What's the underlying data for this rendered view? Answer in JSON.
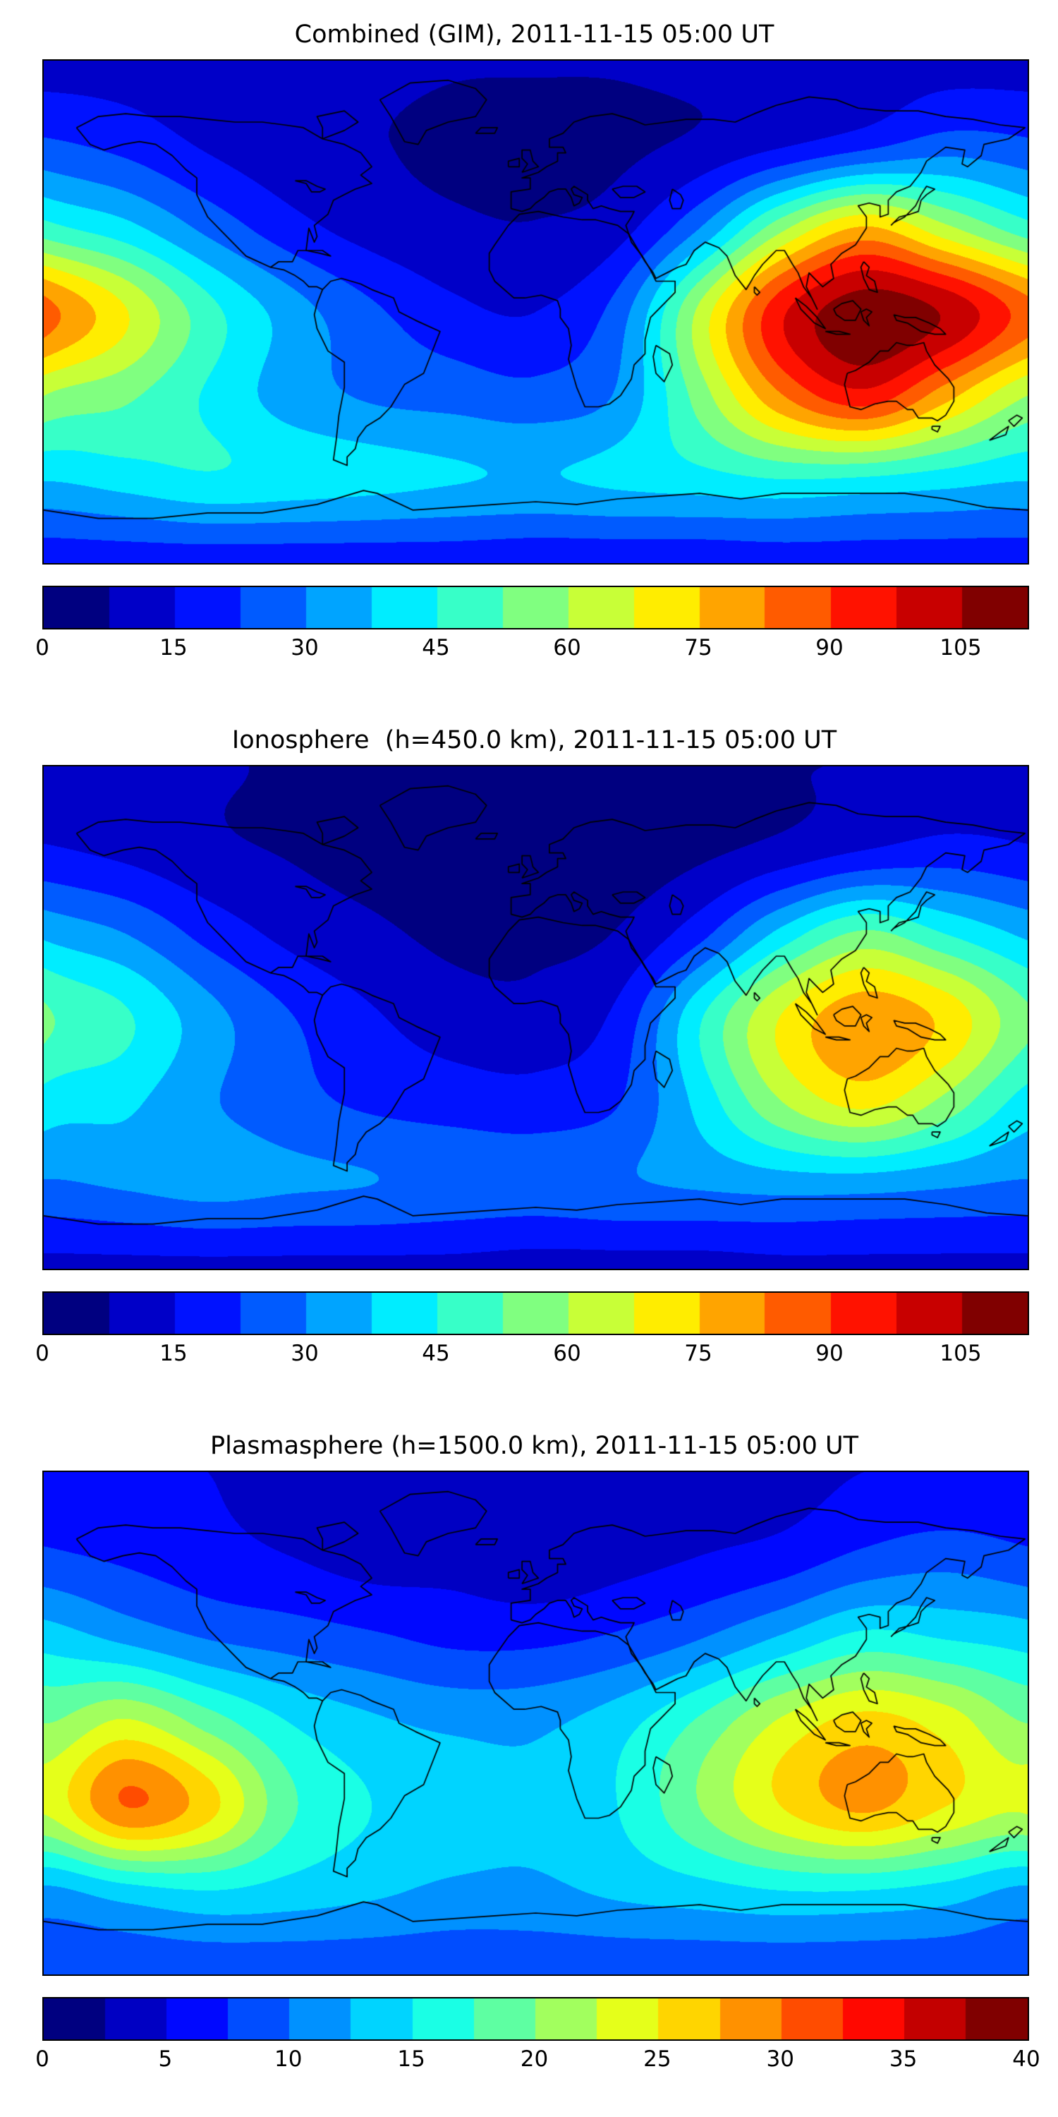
{
  "figure": {
    "background": "#ffffff",
    "map_border_color": "#000000",
    "coastline_color": "#000000"
  },
  "chart_data": [
    {
      "type": "heatmap",
      "title": "Combined (GIM), 2011-11-15 05:00 UT",
      "projection": "equirectangular",
      "lon_range": [
        -180,
        180
      ],
      "lat_range": [
        -90,
        90
      ],
      "colormap": "jet",
      "levels": {
        "min": 0,
        "max": 112.5,
        "step": 7.5
      },
      "colorbar_ticks": [
        {
          "value": 0,
          "label": "0"
        },
        {
          "value": 15,
          "label": "15"
        },
        {
          "value": 30,
          "label": "30"
        },
        {
          "value": 45,
          "label": "45"
        },
        {
          "value": 60,
          "label": "60"
        },
        {
          "value": 75,
          "label": "75"
        },
        {
          "value": 90,
          "label": "90"
        },
        {
          "value": 105,
          "label": "105"
        }
      ],
      "grid": {
        "lons": [
          -180,
          -150,
          -120,
          -90,
          -60,
          -30,
          0,
          30,
          60,
          90,
          120,
          150,
          180
        ],
        "lats": [
          90,
          60,
          30,
          0,
          -30,
          -60,
          -90
        ],
        "values": [
          [
            12,
            12,
            11,
            10,
            9,
            8,
            8,
            8,
            9,
            10,
            11,
            12,
            12
          ],
          [
            24,
            20,
            14,
            10,
            8,
            6,
            5,
            6,
            9,
            14,
            20,
            26,
            24
          ],
          [
            48,
            40,
            28,
            18,
            12,
            9,
            8,
            12,
            30,
            58,
            76,
            62,
            48
          ],
          [
            86,
            68,
            48,
            34,
            24,
            17,
            15,
            26,
            62,
            96,
            110,
            104,
            86
          ],
          [
            60,
            54,
            44,
            34,
            29,
            27,
            25,
            31,
            56,
            82,
            95,
            78,
            60
          ],
          [
            38,
            41,
            44,
            42,
            40,
            38,
            37,
            39,
            42,
            45,
            44,
            41,
            38
          ],
          [
            18,
            18,
            18,
            18,
            18,
            18,
            17,
            17,
            17,
            18,
            18,
            18,
            18
          ]
        ]
      }
    },
    {
      "type": "heatmap",
      "title": "Ionosphere  (h=450.0 km), 2011-11-15 05:00 UT",
      "projection": "equirectangular",
      "lon_range": [
        -180,
        180
      ],
      "lat_range": [
        -90,
        90
      ],
      "colormap": "jet",
      "levels": {
        "min": 0,
        "max": 112.5,
        "step": 7.5
      },
      "colorbar_ticks": [
        {
          "value": 0,
          "label": "0"
        },
        {
          "value": 15,
          "label": "15"
        },
        {
          "value": 30,
          "label": "30"
        },
        {
          "value": 45,
          "label": "45"
        },
        {
          "value": 60,
          "label": "60"
        },
        {
          "value": 75,
          "label": "75"
        },
        {
          "value": 90,
          "label": "90"
        },
        {
          "value": 105,
          "label": "105"
        }
      ],
      "grid": {
        "lons": [
          -180,
          -150,
          -120,
          -90,
          -60,
          -30,
          0,
          30,
          60,
          90,
          120,
          150,
          180
        ],
        "lats": [
          90,
          60,
          30,
          0,
          -30,
          -60,
          -90
        ],
        "values": [
          [
            9,
            9,
            8,
            7,
            6,
            5,
            5,
            5,
            6,
            7,
            8,
            9,
            9
          ],
          [
            16,
            13,
            9,
            7,
            5,
            4,
            4,
            4,
            6,
            10,
            15,
            18,
            16
          ],
          [
            36,
            30,
            20,
            13,
            9,
            6,
            6,
            8,
            20,
            40,
            54,
            45,
            36
          ],
          [
            54,
            46,
            33,
            23,
            16,
            11,
            10,
            17,
            44,
            68,
            80,
            73,
            54
          ],
          [
            42,
            39,
            31,
            25,
            21,
            19,
            18,
            22,
            40,
            60,
            70,
            58,
            42
          ],
          [
            29,
            31,
            33,
            31,
            30,
            28,
            27,
            29,
            31,
            33,
            33,
            31,
            29
          ],
          [
            13,
            13,
            13,
            13,
            13,
            13,
            12,
            12,
            12,
            13,
            13,
            13,
            13
          ]
        ]
      }
    },
    {
      "type": "heatmap",
      "title": "Plasmasphere (h=1500.0 km), 2011-11-15 05:00 UT",
      "projection": "equirectangular",
      "lon_range": [
        -180,
        180
      ],
      "lat_range": [
        -90,
        90
      ],
      "colormap": "jet",
      "levels": {
        "min": 0,
        "max": 40,
        "step": 2.5
      },
      "colorbar_ticks": [
        {
          "value": 0,
          "label": "0"
        },
        {
          "value": 5,
          "label": "5"
        },
        {
          "value": 10,
          "label": "10"
        },
        {
          "value": 15,
          "label": "15"
        },
        {
          "value": 20,
          "label": "20"
        },
        {
          "value": 25,
          "label": "25"
        },
        {
          "value": 30,
          "label": "30"
        },
        {
          "value": 35,
          "label": "35"
        },
        {
          "value": 40,
          "label": "40"
        }
      ],
      "grid": {
        "lons": [
          -180,
          -150,
          -120,
          -90,
          -60,
          -30,
          0,
          30,
          60,
          90,
          120,
          150,
          180
        ],
        "lats": [
          90,
          60,
          30,
          0,
          -30,
          -60,
          -90
        ],
        "values": [
          [
            5,
            5,
            5,
            4,
            4,
            3,
            3,
            3,
            4,
            4,
            5,
            5,
            5
          ],
          [
            8,
            7,
            6,
            5,
            4,
            4,
            3,
            4,
            5,
            6,
            8,
            9,
            8
          ],
          [
            14,
            12,
            10,
            9,
            8,
            7,
            7,
            8,
            10,
            13,
            16,
            15,
            14
          ],
          [
            20,
            23,
            19,
            15,
            13,
            12,
            12,
            14,
            18,
            23,
            26,
            24,
            20
          ],
          [
            23,
            30,
            26,
            18,
            15,
            14,
            13,
            15,
            20,
            25,
            28,
            25,
            23
          ],
          [
            12,
            14,
            15,
            14,
            13,
            12,
            12,
            13,
            14,
            15,
            15,
            14,
            12
          ],
          [
            8,
            8,
            8,
            8,
            8,
            8,
            8,
            8,
            8,
            8,
            8,
            8,
            8
          ]
        ]
      }
    }
  ]
}
